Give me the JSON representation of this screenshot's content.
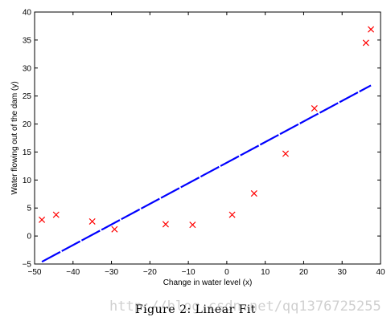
{
  "chart_data": {
    "type": "scatter",
    "xlabel": "Change in water level (x)",
    "ylabel": "Water flowing out of the dam (y)",
    "xlim": [
      -50,
      40
    ],
    "ylim": [
      -5,
      40
    ],
    "xticks": [
      -50,
      -40,
      -30,
      -20,
      -10,
      0,
      10,
      20,
      30,
      40
    ],
    "yticks": [
      -5,
      0,
      5,
      10,
      15,
      20,
      25,
      30,
      35,
      40
    ],
    "xtick_labels": [
      "−50",
      "−40",
      "−30",
      "−20",
      "−10",
      "0",
      "10",
      "20",
      "30",
      "40"
    ],
    "yticks_labels": [
      "−5",
      "0",
      "5",
      "10",
      "15",
      "20",
      "25",
      "30",
      "35",
      "40"
    ],
    "grid": false,
    "series": [
      {
        "type": "scatter",
        "marker": "x",
        "color": "#ff0000",
        "x": [
          -48.1,
          -44.4,
          -35.0,
          -29.2,
          -15.9,
          -8.9,
          1.4,
          7.1,
          15.3,
          22.8,
          36.2,
          37.5
        ],
        "y": [
          2.9,
          3.8,
          2.6,
          1.2,
          2.1,
          2.0,
          3.8,
          7.6,
          14.7,
          22.8,
          34.5,
          36.9
        ]
      },
      {
        "type": "line",
        "style": "dashed",
        "color": "#0000ff",
        "x": [
          -48.1,
          37.5
        ],
        "y": [
          -4.6,
          26.9
        ]
      }
    ]
  },
  "figure": {
    "caption": "Figure 2:  Linear Fit"
  },
  "watermark": "http://blog.csdn.net/qq1376725255"
}
